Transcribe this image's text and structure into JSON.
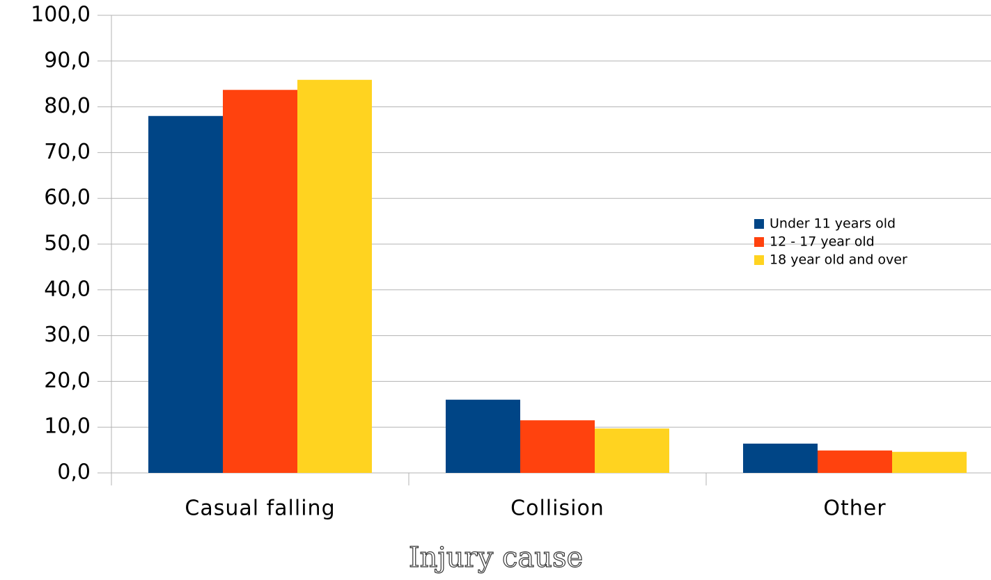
{
  "chart_data": {
    "type": "bar",
    "xlabel": "Injury cause",
    "categories": [
      "Casual falling",
      "Collision",
      "Other"
    ],
    "series": [
      {
        "name": "Under 11 years old",
        "color": "#004586",
        "values": [
          78.0,
          16.0,
          6.4
        ]
      },
      {
        "name": "12 - 17 year old",
        "color": "#ff420e",
        "values": [
          83.7,
          11.5,
          4.9
        ]
      },
      {
        "name": "18 year old and over",
        "color": "#ffd320",
        "values": [
          85.9,
          9.7,
          4.6
        ]
      }
    ],
    "ylim": [
      0,
      100
    ],
    "yticks": [
      {
        "value": 0,
        "label": "0,0"
      },
      {
        "value": 10,
        "label": "10,0"
      },
      {
        "value": 20,
        "label": "20,0"
      },
      {
        "value": 30,
        "label": "30,0"
      },
      {
        "value": 40,
        "label": "40,0"
      },
      {
        "value": 50,
        "label": "50,0"
      },
      {
        "value": 60,
        "label": "60,0"
      },
      {
        "value": 70,
        "label": "70,0"
      },
      {
        "value": 80,
        "label": "80,0"
      },
      {
        "value": 90,
        "label": "90,0"
      },
      {
        "value": 100,
        "label": "100,0"
      }
    ],
    "grid": true,
    "legend": "right"
  }
}
